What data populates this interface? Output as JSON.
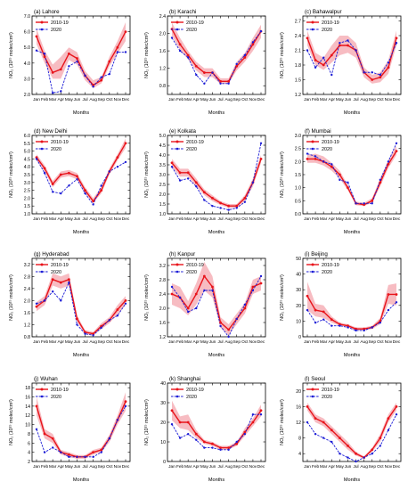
{
  "colors": {
    "baseline": "#e8141b",
    "band": "#f4a6ae",
    "current": "#1b1bd6"
  },
  "shared": {
    "months": [
      "Jan",
      "Feb",
      "Mar",
      "Apr",
      "May",
      "Jun",
      "Jul",
      "Aug",
      "Sep",
      "Oct",
      "Nov",
      "Dec"
    ],
    "xlabel": "Months",
    "legend": [
      "2010-19",
      "2020"
    ]
  },
  "chart_data": [
    {
      "type": "line",
      "title": "(a) Lahore",
      "ylabel": "NO₂ (10¹⁵ molec/cm²)",
      "ylim": [
        2.0,
        7.0
      ],
      "yticks": [
        2.0,
        3.0,
        4.0,
        5.0,
        6.0,
        7.0
      ],
      "ytick_labels": [
        "2.0",
        "3.0",
        "4.0",
        "5.0",
        "6.0",
        "7.0"
      ],
      "series": [
        {
          "name": "2010-19",
          "values": [
            5.7,
            4.4,
            3.4,
            3.6,
            4.6,
            4.3,
            3.2,
            2.6,
            2.9,
            4.1,
            5.0,
            6.0
          ],
          "lower": [
            5.2,
            4.0,
            3.0,
            3.0,
            4.2,
            3.9,
            2.9,
            2.4,
            2.7,
            3.8,
            4.6,
            5.4
          ],
          "upper": [
            6.2,
            4.8,
            3.9,
            4.4,
            5.0,
            4.7,
            3.5,
            2.9,
            3.1,
            4.4,
            5.4,
            6.6
          ]
        },
        {
          "name": "2020",
          "values": [
            4.8,
            4.6,
            2.1,
            2.2,
            3.8,
            4.1,
            3.2,
            2.5,
            3.1,
            3.3,
            4.7,
            4.7
          ]
        }
      ]
    },
    {
      "type": "line",
      "title": "(b) Karachi",
      "ylabel": "NO₂ (10¹⁵ molec/cm²)",
      "ylim": [
        0.6,
        2.4
      ],
      "yticks": [
        0.8,
        1.2,
        1.6,
        2.0,
        2.4
      ],
      "ytick_labels": [
        "0.8",
        "1.2",
        "1.6",
        "2.0",
        "2.4"
      ],
      "series": [
        {
          "name": "2010-19",
          "values": [
            2.1,
            1.75,
            1.5,
            1.25,
            1.1,
            1.1,
            0.9,
            0.9,
            1.25,
            1.45,
            1.75,
            2.05
          ],
          "lower": [
            1.95,
            1.62,
            1.4,
            1.15,
            1.0,
            1.0,
            0.84,
            0.85,
            1.15,
            1.35,
            1.6,
            1.9
          ],
          "upper": [
            2.25,
            1.9,
            1.6,
            1.35,
            1.2,
            1.2,
            0.97,
            0.97,
            1.35,
            1.55,
            1.9,
            2.2
          ]
        },
        {
          "name": "2020",
          "values": [
            1.9,
            1.6,
            1.45,
            1.05,
            0.85,
            1.1,
            0.85,
            0.85,
            1.3,
            1.5,
            1.8,
            2.05
          ]
        }
      ]
    },
    {
      "type": "line",
      "title": "(c) Bahawalpur",
      "ylabel": "NO₂ (10¹⁵ molec/cm²)",
      "ylim": [
        1.2,
        2.8
      ],
      "yticks": [
        1.2,
        1.5,
        1.8,
        2.1,
        2.4,
        2.7
      ],
      "ytick_labels": [
        "1.2",
        "1.5",
        "1.8",
        "2.1",
        "2.4",
        "2.7"
      ],
      "series": [
        {
          "name": "2010-19",
          "values": [
            2.35,
            1.9,
            1.8,
            2.0,
            2.2,
            2.2,
            2.1,
            1.65,
            1.5,
            1.55,
            1.75,
            2.35
          ],
          "lower": [
            2.2,
            1.8,
            1.7,
            1.85,
            2.0,
            2.05,
            1.95,
            1.55,
            1.42,
            1.45,
            1.62,
            2.2
          ],
          "upper": [
            2.5,
            2.05,
            1.95,
            2.2,
            2.4,
            2.4,
            2.25,
            1.75,
            1.6,
            1.65,
            1.9,
            2.5
          ]
        },
        {
          "name": "2020",
          "values": [
            2.1,
            1.75,
            1.95,
            1.6,
            2.25,
            2.3,
            2.1,
            1.65,
            1.65,
            1.6,
            1.85,
            2.25
          ]
        }
      ]
    },
    {
      "type": "line",
      "title": "(d) New Delhi",
      "ylabel": "NO₂ (10¹⁵ molec/cm²)",
      "ylim": [
        1.0,
        6.0
      ],
      "yticks": [
        1.0,
        1.5,
        2.0,
        2.5,
        3.0,
        3.5,
        4.0,
        4.5,
        5.0,
        5.5,
        6.0
      ],
      "ytick_labels": [
        "1.0",
        "1.5",
        "2.0",
        "2.5",
        "3.0",
        "3.5",
        "4.0",
        "4.5",
        "5.0",
        "5.5",
        "6.0"
      ],
      "series": [
        {
          "name": "2010-19",
          "values": [
            4.6,
            3.9,
            2.9,
            3.5,
            3.6,
            3.4,
            2.5,
            1.8,
            2.5,
            3.7,
            4.6,
            5.5
          ],
          "lower": [
            4.4,
            3.7,
            2.7,
            3.3,
            3.4,
            3.2,
            2.3,
            1.7,
            2.3,
            3.5,
            4.4,
            5.2
          ],
          "upper": [
            4.8,
            4.1,
            3.1,
            3.7,
            3.8,
            3.6,
            2.7,
            2.0,
            2.7,
            3.9,
            4.8,
            5.8
          ]
        },
        {
          "name": "2020",
          "values": [
            4.5,
            3.6,
            2.4,
            2.3,
            2.8,
            3.2,
            2.3,
            1.6,
            2.8,
            3.7,
            4.0,
            4.3
          ]
        }
      ]
    },
    {
      "type": "line",
      "title": "(e) Kolkata",
      "ylabel": "NO₂ (10¹⁵ molec/cm²)",
      "ylim": [
        1.0,
        5.0
      ],
      "yticks": [
        1.0,
        1.5,
        2.0,
        2.5,
        3.0,
        3.5,
        4.0,
        4.5,
        5.0
      ],
      "ytick_labels": [
        "1.0",
        "1.5",
        "2.0",
        "2.5",
        "3.0",
        "3.5",
        "4.0",
        "4.5",
        "5.0"
      ],
      "series": [
        {
          "name": "2010-19",
          "values": [
            3.6,
            3.1,
            3.1,
            2.6,
            2.1,
            1.8,
            1.55,
            1.4,
            1.4,
            1.8,
            2.6,
            3.8
          ],
          "lower": [
            3.4,
            2.9,
            2.9,
            2.4,
            1.95,
            1.65,
            1.45,
            1.3,
            1.3,
            1.65,
            2.4,
            3.6
          ],
          "upper": [
            3.8,
            3.3,
            3.3,
            2.8,
            2.25,
            1.95,
            1.65,
            1.5,
            1.5,
            1.95,
            2.8,
            4.0
          ]
        },
        {
          "name": "2020",
          "values": [
            3.4,
            2.7,
            2.8,
            2.4,
            1.7,
            1.4,
            1.3,
            1.2,
            1.3,
            1.6,
            2.6,
            4.6
          ]
        }
      ]
    },
    {
      "type": "line",
      "title": "(f) Mumbai",
      "ylabel": "NO₂ (10¹⁵ molec/cm²)",
      "ylim": [
        0.0,
        3.0
      ],
      "yticks": [
        0.0,
        0.5,
        1.0,
        1.5,
        2.0,
        2.5,
        3.0
      ],
      "ytick_labels": [
        "0.0",
        "0.5",
        "1.0",
        "1.5",
        "2.0",
        "2.5",
        "3.0"
      ],
      "series": [
        {
          "name": "2010-19",
          "values": [
            2.1,
            2.1,
            2.0,
            1.8,
            1.5,
            1.0,
            0.4,
            0.35,
            0.5,
            1.2,
            1.9,
            2.4
          ],
          "lower": [
            1.95,
            1.95,
            1.85,
            1.65,
            1.35,
            0.9,
            0.33,
            0.3,
            0.42,
            1.05,
            1.75,
            2.25
          ],
          "upper": [
            2.25,
            2.3,
            2.2,
            1.95,
            1.65,
            1.1,
            0.47,
            0.42,
            0.6,
            1.35,
            2.05,
            2.6
          ]
        },
        {
          "name": "2020",
          "values": [
            2.3,
            2.2,
            2.0,
            1.9,
            1.3,
            1.2,
            0.4,
            0.4,
            0.4,
            1.3,
            2.0,
            2.7
          ]
        }
      ]
    },
    {
      "type": "line",
      "title": "(g) Hyderabad",
      "ylabel": "NO₂ (10¹⁵ molec/cm²)",
      "ylim": [
        0.8,
        3.4
      ],
      "yticks": [
        0.8,
        1.2,
        1.6,
        2.0,
        2.4,
        2.8,
        3.2
      ],
      "ytick_labels": [
        "0.8",
        "1.2",
        "1.6",
        "2.0",
        "2.4",
        "2.8",
        "3.2"
      ],
      "series": [
        {
          "name": "2010-19",
          "values": [
            1.8,
            2.0,
            2.7,
            2.6,
            2.7,
            1.4,
            0.95,
            0.9,
            1.15,
            1.35,
            1.7,
            2.0
          ],
          "lower": [
            1.65,
            1.85,
            2.5,
            2.4,
            2.5,
            1.3,
            0.88,
            0.85,
            1.05,
            1.25,
            1.55,
            1.85
          ],
          "upper": [
            1.95,
            2.15,
            2.9,
            2.8,
            2.9,
            1.5,
            1.02,
            0.96,
            1.25,
            1.45,
            1.85,
            2.15
          ]
        },
        {
          "name": "2020",
          "values": [
            1.9,
            2.0,
            2.3,
            2.0,
            2.6,
            1.2,
            0.9,
            0.85,
            1.1,
            1.35,
            1.5,
            1.9
          ]
        }
      ]
    },
    {
      "type": "line",
      "title": "(h) Kanpur",
      "ylabel": "NO₂ (10¹⁵ molec/cm²)",
      "ylim": [
        1.2,
        3.4
      ],
      "yticks": [
        1.2,
        1.6,
        2.0,
        2.4,
        2.8,
        3.2
      ],
      "ytick_labels": [
        "1.2",
        "1.6",
        "2.0",
        "2.4",
        "2.8",
        "3.2"
      ],
      "series": [
        {
          "name": "2010-19",
          "values": [
            2.4,
            2.3,
            2.0,
            2.4,
            2.9,
            2.6,
            1.6,
            1.4,
            1.7,
            2.0,
            2.6,
            2.7
          ],
          "lower": [
            2.1,
            2.0,
            1.8,
            2.1,
            2.5,
            2.3,
            1.45,
            1.25,
            1.55,
            1.85,
            2.4,
            2.5
          ],
          "upper": [
            2.7,
            2.6,
            2.2,
            2.7,
            3.3,
            2.9,
            1.75,
            1.55,
            1.85,
            2.15,
            2.8,
            2.9
          ]
        },
        {
          "name": "2020",
          "values": [
            2.6,
            2.3,
            1.9,
            2.0,
            2.5,
            2.5,
            1.5,
            1.2,
            1.7,
            2.1,
            2.5,
            2.9
          ]
        }
      ]
    },
    {
      "type": "line",
      "title": "(i) Beijing",
      "ylabel": "NO₂ (10¹⁵ molec/cm²)",
      "ylim": [
        0,
        50
      ],
      "yticks": [
        0,
        10,
        20,
        30,
        40,
        50
      ],
      "ytick_labels": [
        "0",
        "10",
        "20",
        "30",
        "40",
        "50"
      ],
      "series": [
        {
          "name": "2010-19",
          "values": [
            26,
            17,
            16,
            11,
            8,
            7,
            5,
            5,
            6,
            10,
            27,
            27
          ],
          "lower": [
            17,
            13,
            12,
            9,
            7,
            6,
            4,
            4,
            5,
            8,
            21,
            20
          ],
          "upper": [
            35,
            21,
            20,
            13,
            9,
            8,
            6,
            6,
            7,
            12,
            33,
            34
          ]
        },
        {
          "name": "2020",
          "values": [
            17,
            9,
            11,
            7,
            7,
            6,
            4,
            4,
            6,
            9,
            17,
            22
          ]
        }
      ]
    },
    {
      "type": "line",
      "title": "(j) Wuhan",
      "ylabel": "NO₂ (10¹⁵ molec/cm²)",
      "ylim": [
        2,
        19
      ],
      "yticks": [
        2,
        4,
        6,
        8,
        10,
        12,
        14,
        16,
        18
      ],
      "ytick_labels": [
        "2",
        "4",
        "6",
        "8",
        "10",
        "12",
        "14",
        "16",
        "18"
      ],
      "series": [
        {
          "name": "2010-19",
          "values": [
            14,
            8,
            7,
            4,
            3.5,
            3,
            3,
            4,
            4.5,
            7,
            11,
            15
          ],
          "lower": [
            12,
            7,
            6,
            3.5,
            3,
            2.6,
            2.6,
            3.5,
            4,
            6.2,
            10,
            13
          ],
          "upper": [
            16,
            9,
            8,
            4.5,
            4,
            3.4,
            3.4,
            4.5,
            5,
            7.8,
            12,
            17
          ]
        },
        {
          "name": "2020",
          "values": [
            9,
            4,
            5,
            4,
            3,
            3,
            3,
            3,
            4,
            7,
            11,
            14
          ]
        }
      ]
    },
    {
      "type": "line",
      "title": "(k) Shanghai",
      "ylabel": "NO₂ (10¹⁵ molec/cm²)",
      "ylim": [
        0,
        40
      ],
      "yticks": [
        0,
        10,
        20,
        30,
        40
      ],
      "ytick_labels": [
        "0",
        "10",
        "20",
        "30",
        "40"
      ],
      "series": [
        {
          "name": "2010-19",
          "values": [
            26,
            20,
            20,
            14,
            10,
            9,
            7,
            7,
            9,
            15,
            20,
            26
          ],
          "lower": [
            21,
            17,
            16,
            12,
            9,
            8,
            6,
            6,
            8,
            13,
            18,
            23
          ],
          "upper": [
            31,
            23,
            24,
            16,
            11,
            10,
            8,
            8,
            10,
            17,
            22,
            29
          ]
        },
        {
          "name": "2020",
          "values": [
            19,
            12,
            14,
            11,
            7,
            7,
            6,
            6,
            10,
            14,
            24,
            24
          ]
        }
      ]
    },
    {
      "type": "line",
      "title": "(l) Seoul",
      "ylabel": "NO₂ (10¹⁵ molec/cm²)",
      "ylim": [
        2,
        22
      ],
      "yticks": [
        4,
        8,
        12,
        16,
        20
      ],
      "ytick_labels": [
        "4",
        "8",
        "12",
        "16",
        "20"
      ],
      "series": [
        {
          "name": "2010-19",
          "values": [
            16,
            13,
            12,
            10,
            8,
            6,
            4,
            3,
            5,
            8,
            13,
            16
          ],
          "lower": [
            15,
            12,
            11,
            9,
            7,
            5,
            3.5,
            2.7,
            4.5,
            7,
            12,
            15
          ],
          "upper": [
            17,
            14,
            13,
            11,
            9,
            7,
            4.5,
            3.3,
            5.5,
            9,
            14,
            17
          ]
        },
        {
          "name": "2020",
          "values": [
            12,
            9,
            8,
            7,
            4,
            3,
            2,
            3,
            4,
            6,
            10,
            14
          ]
        }
      ]
    }
  ]
}
